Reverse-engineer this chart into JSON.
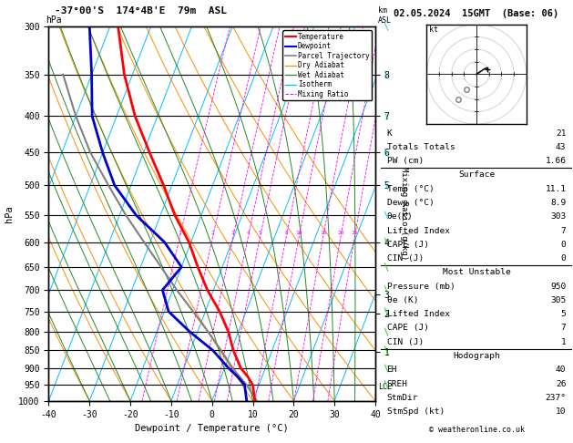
{
  "title_left": "-37°00'S  174°4B'E  79m  ASL",
  "title_right": "02.05.2024  15GMT  (Base: 06)",
  "xlabel": "Dewpoint / Temperature (°C)",
  "ylabel_left": "hPa",
  "bg_color": "#ffffff",
  "plot_bg": "#ffffff",
  "isotherm_color": "#00bfff",
  "dry_adiabat_color": "#ff8c00",
  "wet_adiabat_color": "#228b22",
  "mixing_ratio_color": "#ff00ff",
  "temperature_color": "#ff0000",
  "dewpoint_color": "#0000cc",
  "parcel_color": "#808080",
  "temperature_profile": {
    "pressure": [
      1000,
      975,
      950,
      925,
      900,
      850,
      800,
      750,
      700,
      650,
      600,
      550,
      500,
      450,
      400,
      350,
      300
    ],
    "temp_C": [
      10.5,
      9.5,
      8.5,
      6.5,
      4.0,
      0.5,
      -2.5,
      -6.5,
      -11.5,
      -16.0,
      -20.5,
      -26.5,
      -32.0,
      -38.5,
      -45.5,
      -52.0,
      -58.0
    ]
  },
  "dewpoint_profile": {
    "pressure": [
      1000,
      975,
      950,
      925,
      900,
      850,
      800,
      750,
      700,
      650,
      600,
      550,
      500,
      450,
      400,
      350,
      300
    ],
    "dewp_C": [
      8.5,
      7.5,
      6.5,
      4.0,
      1.0,
      -4.5,
      -12.0,
      -19.0,
      -22.5,
      -20.0,
      -26.5,
      -36.0,
      -44.0,
      -50.0,
      -56.0,
      -60.0,
      -65.0
    ]
  },
  "parcel_profile": {
    "pressure": [
      1000,
      975,
      950,
      925,
      900,
      850,
      800,
      750,
      700,
      650,
      600,
      550,
      500,
      450,
      400,
      350
    ],
    "temp_C": [
      11.0,
      9.0,
      7.0,
      4.5,
      2.0,
      -2.5,
      -7.5,
      -13.0,
      -19.0,
      -25.0,
      -31.5,
      -38.5,
      -45.5,
      -53.0,
      -60.0,
      -67.0
    ]
  },
  "mixing_ratios": [
    1,
    2,
    3,
    4,
    5,
    8,
    10,
    15,
    20,
    25
  ],
  "mixing_ratio_labels_pressure": 590,
  "lcl_pressure": 955,
  "copyright": "© weatheronline.co.uk",
  "wind_barbs_lower": {
    "pressures": [
      950,
      900,
      850,
      800,
      750,
      700,
      650,
      600
    ],
    "color": "#00cc00"
  },
  "wind_barbs_upper": {
    "pressures": [
      550,
      500,
      450,
      400,
      350,
      300
    ],
    "color": "#00cccc"
  },
  "hodograph": {
    "u": [
      0,
      3,
      6,
      8,
      9
    ],
    "v": [
      0,
      2,
      4,
      5,
      4
    ],
    "storm_u": -3,
    "storm_v": -4
  },
  "stats_rows": [
    [
      "K",
      "21",
      false
    ],
    [
      "Totals Totals",
      "43",
      false
    ],
    [
      "PW (cm)",
      "1.66",
      false
    ],
    [
      "Surface",
      "",
      true
    ],
    [
      "Temp (°C)",
      "11.1",
      false
    ],
    [
      "Dewp (°C)",
      "8.9",
      false
    ],
    [
      "θe(K)",
      "303",
      false
    ],
    [
      "Lifted Index",
      "7",
      false
    ],
    [
      "CAPE (J)",
      "0",
      false
    ],
    [
      "CIN (J)",
      "0",
      false
    ],
    [
      "Most Unstable",
      "",
      true
    ],
    [
      "Pressure (mb)",
      "950",
      false
    ],
    [
      "θe (K)",
      "305",
      false
    ],
    [
      "Lifted Index",
      "5",
      false
    ],
    [
      "CAPE (J)",
      "7",
      false
    ],
    [
      "CIN (J)",
      "1",
      false
    ],
    [
      "Hodograph",
      "",
      true
    ],
    [
      "EH",
      "40",
      false
    ],
    [
      "SREH",
      "26",
      false
    ],
    [
      "StmDir",
      "237°",
      false
    ],
    [
      "StmSpd (kt)",
      "10",
      false
    ]
  ],
  "section_dividers_after": [
    2,
    9,
    15
  ]
}
